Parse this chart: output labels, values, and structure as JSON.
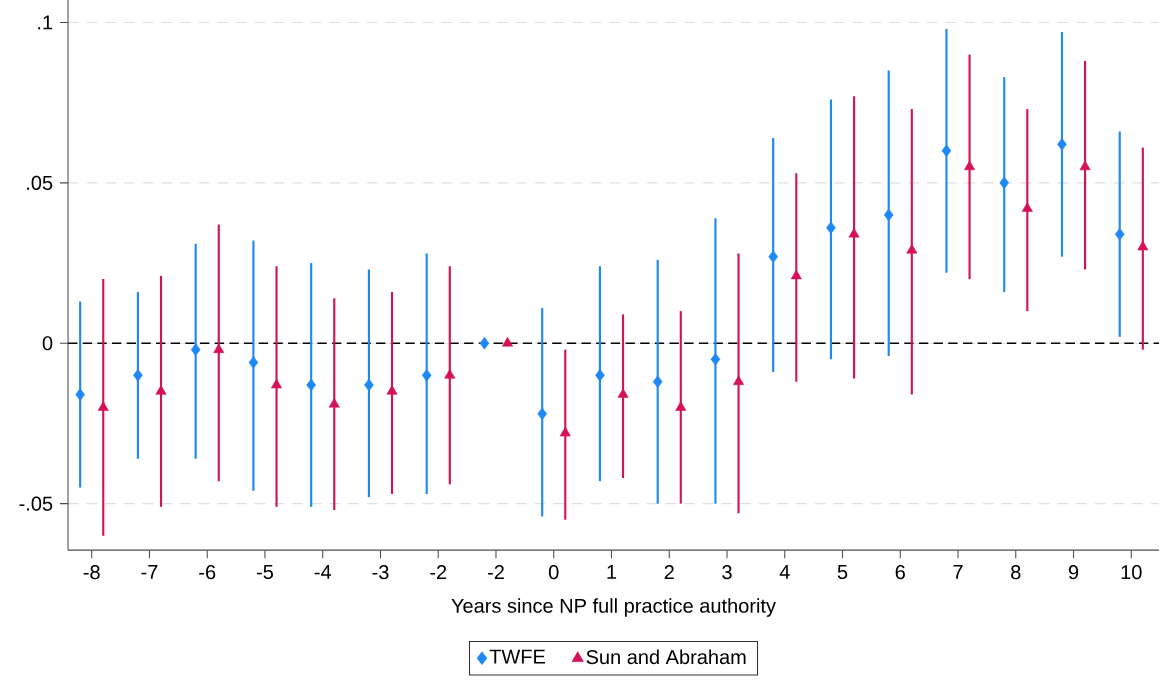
{
  "chart_data": {
    "type": "scatter",
    "xlabel": "Years since NP full practice authority",
    "categories": [
      "-8",
      "-7",
      "-6",
      "-5",
      "-4",
      "-3",
      "-2",
      "-2",
      "0",
      "1",
      "2",
      "3",
      "4",
      "5",
      "6",
      "7",
      "8",
      "9",
      "10"
    ],
    "series": [
      {
        "name": "TWFE",
        "color": "#1e88f5",
        "marker": "diamond",
        "values": [
          -0.016,
          -0.01,
          -0.002,
          -0.006,
          -0.013,
          -0.013,
          -0.01,
          0,
          -0.022,
          -0.01,
          -0.012,
          -0.005,
          0.027,
          0.036,
          0.04,
          0.06,
          0.05,
          0.062,
          0.034
        ],
        "errors": [
          [
            -0.045,
            0.013
          ],
          [
            -0.036,
            0.016
          ],
          [
            -0.036,
            0.031
          ],
          [
            -0.046,
            0.032
          ],
          [
            -0.051,
            0.025
          ],
          [
            -0.048,
            0.023
          ],
          [
            -0.047,
            0.028
          ],
          null,
          [
            -0.054,
            0.011
          ],
          [
            -0.043,
            0.024
          ],
          [
            -0.05,
            0.026
          ],
          [
            -0.05,
            0.039
          ],
          [
            -0.009,
            0.064
          ],
          [
            -0.005,
            0.076
          ],
          [
            -0.004,
            0.085
          ],
          [
            0.022,
            0.098
          ],
          [
            0.016,
            0.083
          ],
          [
            0.027,
            0.097
          ],
          [
            0.002,
            0.066
          ]
        ]
      },
      {
        "name": "Sun and Abraham",
        "color": "#d41159",
        "marker": "triangle",
        "values": [
          -0.02,
          -0.015,
          -0.002,
          -0.013,
          -0.019,
          -0.015,
          -0.01,
          0,
          -0.028,
          -0.016,
          -0.02,
          -0.012,
          0.021,
          0.034,
          0.029,
          0.055,
          0.042,
          0.055,
          0.03
        ],
        "errors": [
          [
            -0.06,
            0.02
          ],
          [
            -0.051,
            0.021
          ],
          [
            -0.043,
            0.037
          ],
          [
            -0.051,
            0.024
          ],
          [
            -0.052,
            0.014
          ],
          [
            -0.047,
            0.016
          ],
          [
            -0.044,
            0.024
          ],
          null,
          [
            -0.055,
            -0.002
          ],
          [
            -0.042,
            0.009
          ],
          [
            -0.05,
            0.01
          ],
          [
            -0.053,
            0.028
          ],
          [
            -0.012,
            0.053
          ],
          [
            -0.011,
            0.077
          ],
          [
            -0.016,
            0.073
          ],
          [
            0.02,
            0.09
          ],
          [
            0.01,
            0.073
          ],
          [
            0.023,
            0.088
          ],
          [
            -0.002,
            0.061
          ]
        ]
      }
    ],
    "ylim": [
      -0.0645,
      0.107
    ],
    "yticks": [
      {
        "value": -0.05,
        "label": "-.05"
      },
      0,
      {
        "value": 0.05,
        "label": ".05"
      },
      {
        "value": 0.1,
        "label": ".1"
      }
    ],
    "grid": "y",
    "legend": "bottom",
    "ref_lines": [
      {
        "axis": "y",
        "value": 0,
        "color": "#000000",
        "line_style": "dashed"
      }
    ]
  }
}
